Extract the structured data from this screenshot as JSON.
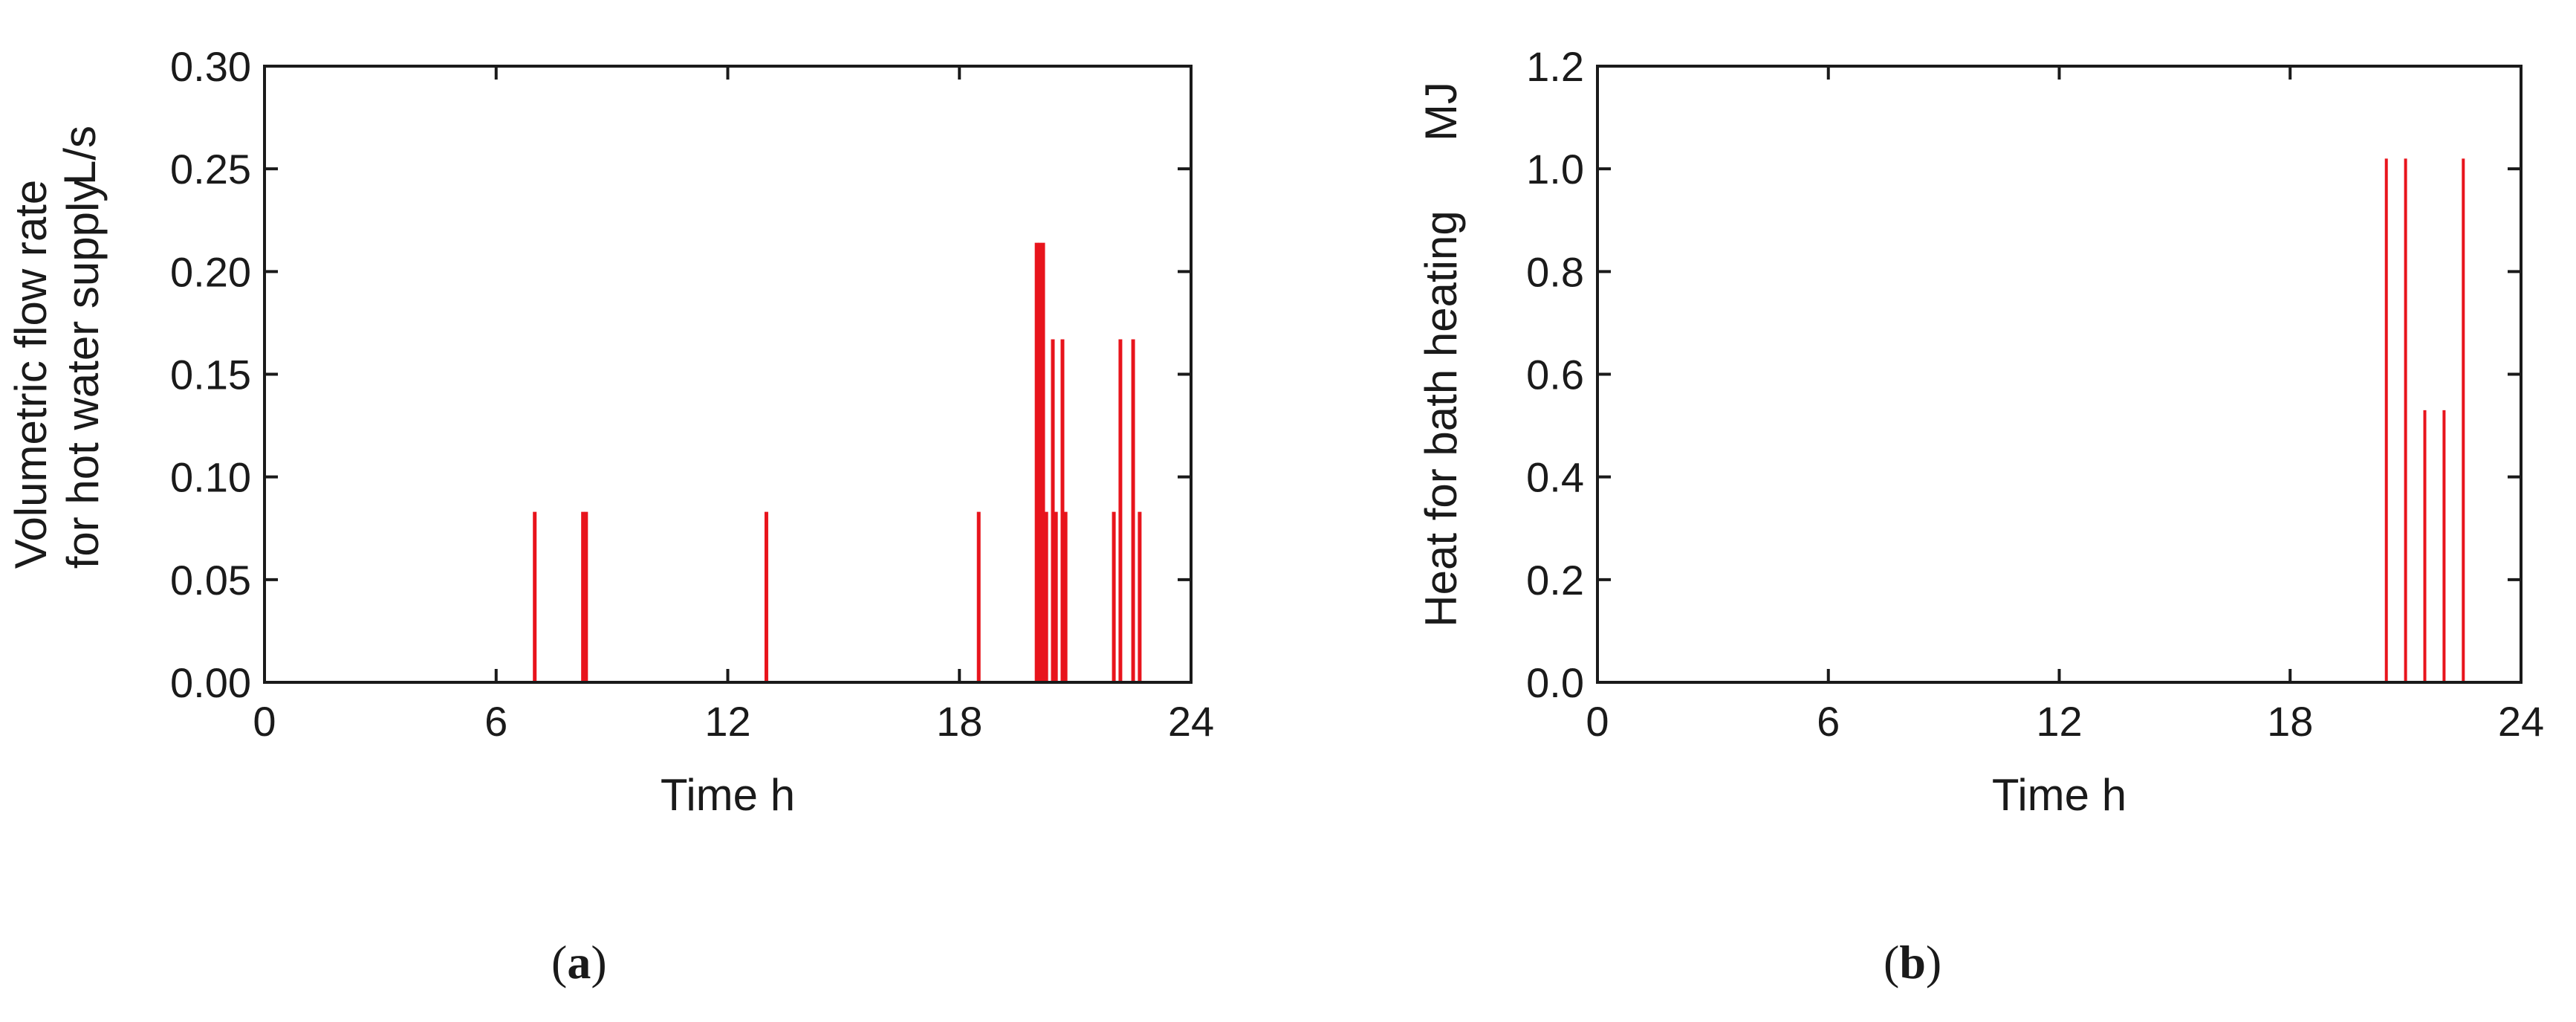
{
  "chart_data": [
    {
      "type": "bar",
      "panel_label": "a",
      "xlabel": "Time   h",
      "ylabel_line1": "Volumetric flow rate",
      "ylabel_line2": "for hot water supply",
      "yunit": "L/s",
      "xlim": [
        0,
        24
      ],
      "ylim": [
        0,
        0.3
      ],
      "xticks": [
        0,
        6,
        12,
        18,
        24
      ],
      "xtick_labels": [
        "0",
        "6",
        "12",
        "18",
        "24"
      ],
      "yticks": [
        0,
        0.05,
        0.1,
        0.15,
        0.2,
        0.25,
        0.3
      ],
      "ytick_labels": [
        "0.00",
        "0.05",
        "0.10",
        "0.15",
        "0.20",
        "0.25",
        "0.30"
      ],
      "bar_color": "#e8141c",
      "x": [
        7.0,
        8.25,
        8.33,
        13.0,
        18.5,
        20.0,
        20.08,
        20.17,
        20.25,
        20.42,
        20.5,
        20.67,
        20.75,
        22.0,
        22.17,
        22.5,
        22.67
      ],
      "values": [
        0.083,
        0.083,
        0.083,
        0.083,
        0.083,
        0.214,
        0.214,
        0.214,
        0.083,
        0.167,
        0.083,
        0.167,
        0.083,
        0.083,
        0.167,
        0.167,
        0.083
      ]
    },
    {
      "type": "bar",
      "panel_label": "b",
      "xlabel": "Time   h",
      "ylabel_line1": "Heat for bath heating",
      "yunit": "MJ",
      "xlim": [
        0,
        24
      ],
      "ylim": [
        0,
        1.2
      ],
      "xticks": [
        0,
        6,
        12,
        18,
        24
      ],
      "xtick_labels": [
        "0",
        "6",
        "12",
        "18",
        "24"
      ],
      "yticks": [
        0,
        0.2,
        0.4,
        0.6,
        0.8,
        1.0,
        1.2
      ],
      "ytick_labels": [
        "0.0",
        "0.2",
        "0.4",
        "0.6",
        "0.8",
        "1.0",
        "1.2"
      ],
      "bar_color": "#e8141c",
      "x": [
        20.5,
        21.0,
        21.5,
        22.0,
        22.5
      ],
      "values": [
        1.02,
        1.02,
        0.53,
        0.53,
        1.02
      ]
    }
  ]
}
